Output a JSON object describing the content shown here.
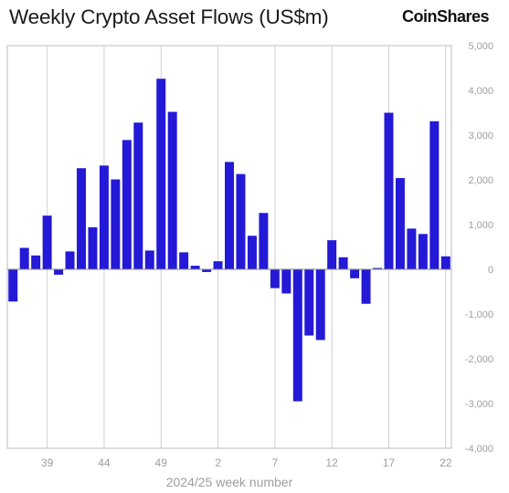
{
  "header": {
    "title": "Weekly Crypto Asset Flows (US$m)",
    "brand": "CoinShares"
  },
  "chart_data": {
    "type": "bar",
    "title": "Weekly Crypto Asset Flows (US$m)",
    "xlabel": "2024/25 week number",
    "ylabel": "",
    "ylim": [
      -4000,
      5000
    ],
    "ytick_values": [
      -4000,
      -3000,
      -2000,
      -1000,
      0,
      1000,
      2000,
      3000,
      4000,
      5000
    ],
    "ytick_labels": [
      "-4,000",
      "-3,000",
      "-2,000",
      "-1,000",
      "0",
      "1,000",
      "2,000",
      "3,000",
      "4,000",
      "5,000"
    ],
    "xtick_labels": [
      "39",
      "44",
      "49",
      "2",
      "7",
      "12",
      "17",
      "22"
    ],
    "xtick_positions": [
      3,
      8,
      13,
      18,
      23,
      28,
      33,
      38
    ],
    "grid": {
      "vertical": true,
      "horizontal": false
    },
    "legend": "none",
    "bar_color": "#2319d6",
    "values": [
      -720,
      480,
      310,
      1200,
      -120,
      400,
      2260,
      940,
      2320,
      2010,
      2890,
      3280,
      420,
      4260,
      3520,
      380,
      80,
      -60,
      180,
      2400,
      2130,
      750,
      1260,
      -420,
      -540,
      -2950,
      -1480,
      -1580,
      650,
      270,
      -200,
      -770,
      30,
      3500,
      2040,
      910,
      790,
      3310,
      290
    ]
  }
}
